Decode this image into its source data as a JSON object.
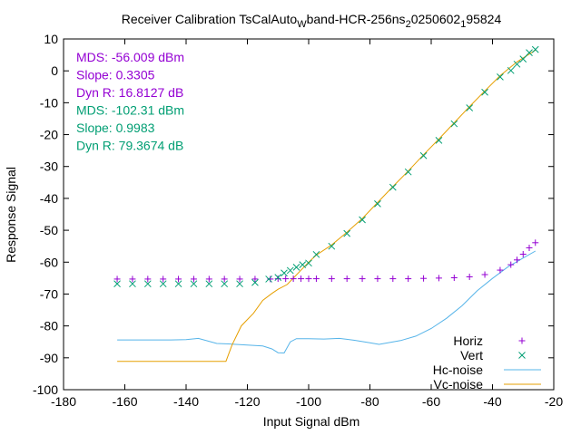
{
  "chart_data": {
    "type": "scatter",
    "title": "Receiver Calibration TsCalAuto",
    "title_sub1": "W",
    "title_mid": "band-HCR-256ns",
    "title_sub2": "2",
    "title_mid2": "0250602",
    "title_sub3": "1",
    "title_end": "95824",
    "xlabel": "Input Signal dBm",
    "ylabel": "Response Signal",
    "xlim": [
      -180,
      -20
    ],
    "ylim": [
      -100,
      10
    ],
    "xticks": [
      -180,
      -160,
      -140,
      -120,
      -100,
      -80,
      -60,
      -40,
      -20
    ],
    "yticks": [
      -100,
      -90,
      -80,
      -70,
      -60,
      -50,
      -40,
      -30,
      -20,
      -10,
      0,
      10
    ],
    "annotations": [
      {
        "text": "MDS: -56.009 dBm",
        "color": "#9400d3"
      },
      {
        "text": "Slope: 0.3305",
        "color": "#9400d3"
      },
      {
        "text": "Dyn R: 16.8127 dB",
        "color": "#9400d3"
      },
      {
        "text": "MDS: -102.31 dBm",
        "color": "#009e73"
      },
      {
        "text": "Slope: 0.9983",
        "color": "#009e73"
      },
      {
        "text": "Dyn R: 79.3674 dB",
        "color": "#009e73"
      }
    ],
    "legend_position": "bottom-right",
    "series": [
      {
        "name": "Horiz",
        "style": "plus",
        "color": "#9400d3",
        "x": [
          -162.5,
          -157.5,
          -152.5,
          -147.5,
          -142.5,
          -137.5,
          -132.5,
          -127.5,
          -122.5,
          -117.5,
          -112.5,
          -110,
          -107.5,
          -105,
          -102.5,
          -100,
          -97.5,
          -92.5,
          -87.5,
          -82.5,
          -77.5,
          -72.5,
          -67.5,
          -62.5,
          -57.5,
          -52.5,
          -47.5,
          -42.5,
          -37.5,
          -34,
          -32,
          -30,
          -28,
          -26
        ],
        "y": [
          -65.3,
          -65.3,
          -65.3,
          -65.3,
          -65.3,
          -65.3,
          -65.3,
          -65.3,
          -65.3,
          -65.3,
          -65.3,
          -65.2,
          -65.2,
          -65.2,
          -65.2,
          -65.2,
          -65.2,
          -65.2,
          -65.2,
          -65.2,
          -65.2,
          -65.2,
          -65.2,
          -65.1,
          -65.0,
          -64.9,
          -64.6,
          -63.9,
          -62.5,
          -60.8,
          -59.3,
          -57.5,
          -55.5,
          -53.9
        ]
      },
      {
        "name": "Vert",
        "style": "cross",
        "color": "#009e73",
        "x": [
          -162.5,
          -157.5,
          -152.5,
          -147.5,
          -142.5,
          -137.5,
          -132.5,
          -127.5,
          -122.5,
          -117.5,
          -113,
          -110,
          -108,
          -106,
          -104,
          -102,
          -100,
          -97.5,
          -92.5,
          -87.5,
          -82.5,
          -77.5,
          -72.5,
          -67.5,
          -62.5,
          -57.5,
          -52.5,
          -47.5,
          -42.5,
          -37.5,
          -34,
          -32,
          -30,
          -28,
          -26
        ],
        "y": [
          -66.8,
          -66.8,
          -66.8,
          -66.8,
          -66.8,
          -66.8,
          -66.8,
          -66.8,
          -66.8,
          -66.4,
          -65.3,
          -64.8,
          -63.4,
          -62.6,
          -61.6,
          -60.8,
          -60.3,
          -57.6,
          -55.0,
          -51.0,
          -46.7,
          -41.7,
          -36.5,
          -31.7,
          -26.6,
          -21.8,
          -16.6,
          -11.6,
          -6.7,
          -1.9,
          0.1,
          2.1,
          3.7,
          5.7,
          6.7
        ]
      },
      {
        "name": "Hc-noise",
        "style": "line",
        "color": "#56b4e9",
        "x": [
          -162.5,
          -150,
          -145,
          -140,
          -136,
          -130,
          -125,
          -120,
          -115,
          -112,
          -110,
          -108,
          -106,
          -104,
          -100,
          -95,
          -90,
          -85,
          -80,
          -77,
          -70,
          -65,
          -60,
          -55,
          -50,
          -45,
          -40,
          -35,
          -30,
          -26
        ],
        "y": [
          -84.4,
          -84.4,
          -84.4,
          -84.3,
          -83.9,
          -85.5,
          -85.7,
          -86.0,
          -86.3,
          -87.2,
          -88.4,
          -88.5,
          -85.0,
          -84.0,
          -84.0,
          -84.1,
          -83.9,
          -84.5,
          -85.3,
          -85.8,
          -84.6,
          -83.2,
          -80.8,
          -77.6,
          -73.7,
          -69.0,
          -65.1,
          -61.5,
          -58.7,
          -56.5
        ]
      },
      {
        "name": "Vc-noise",
        "style": "line",
        "color": "#e69f00",
        "x": [
          -162.5,
          -150,
          -140,
          -130,
          -127,
          -125,
          -122,
          -118,
          -115,
          -112,
          -110,
          -107,
          -105,
          -102,
          -100,
          -97.5,
          -92.5,
          -87.5,
          -82.5,
          -77.5,
          -72.5,
          -67.5,
          -62.5,
          -57.5,
          -52.5,
          -47.5,
          -42.5,
          -37.5,
          -32,
          -26
        ],
        "y": [
          -91.1,
          -91.1,
          -91.1,
          -91.1,
          -91.1,
          -86.0,
          -80.0,
          -76.0,
          -72.0,
          -69.8,
          -68.5,
          -67.0,
          -65.0,
          -62.0,
          -60.0,
          -57.8,
          -54.6,
          -50.6,
          -46.3,
          -41.3,
          -36.3,
          -31.4,
          -26.3,
          -21.4,
          -16.3,
          -11.2,
          -6.3,
          -1.5,
          2.8,
          6.5
        ]
      }
    ]
  }
}
